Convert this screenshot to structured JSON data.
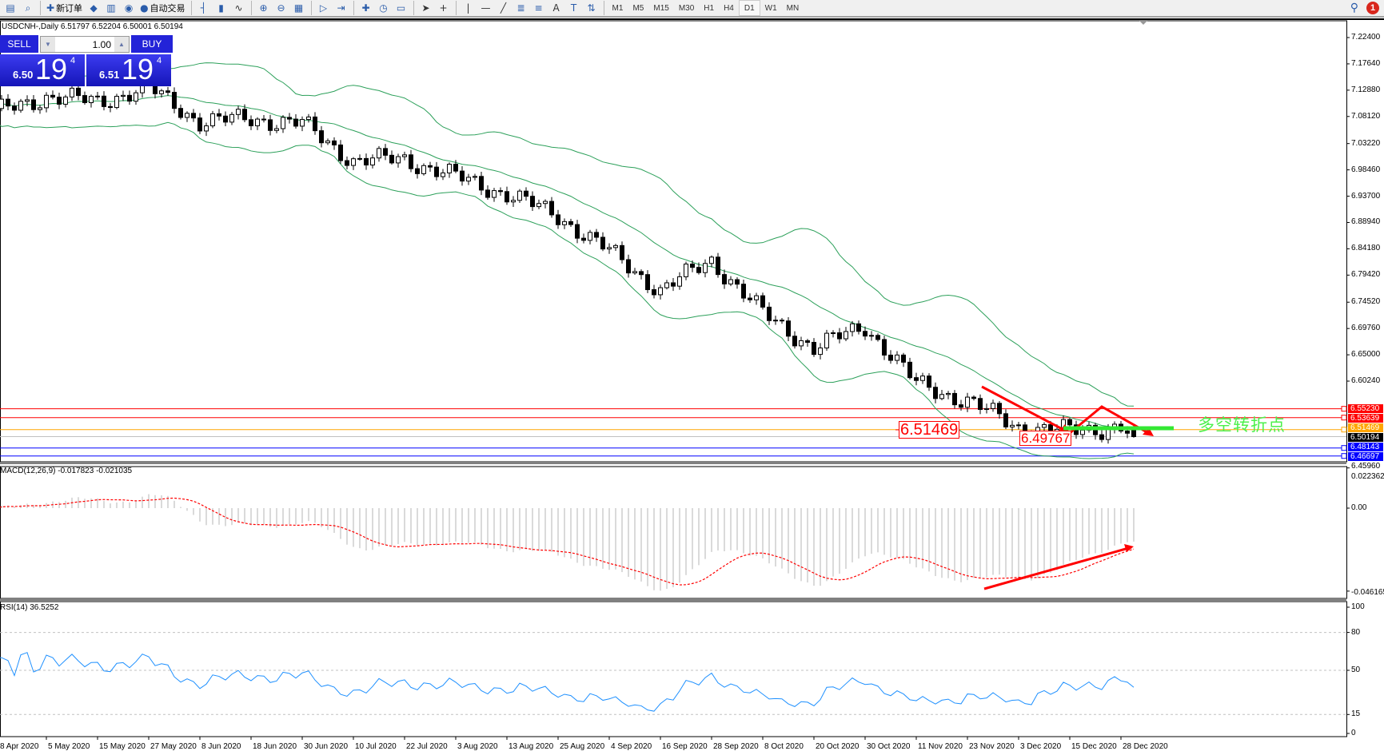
{
  "toolbar": {
    "icons": [
      "new-chart-icon",
      "zoom-window-icon",
      "new-order-icon",
      "history-icon",
      "navigator-icon",
      "signal-icon",
      "autotrading-icon",
      "bar-chart-icon",
      "candlestick-icon",
      "line-chart-icon",
      "zoom-in-icon",
      "zoom-out-icon",
      "tile-icon",
      "autoscroll-icon",
      "chart-shift-icon",
      "indicators-icon",
      "periods-icon",
      "templates-icon",
      "cursor-icon",
      "crosshair-icon",
      "vertical-line-icon",
      "horizontal-line-icon",
      "trendline-icon",
      "equidistant-channel-icon",
      "fibonacci-icon",
      "text-icon",
      "text-label-icon",
      "arrows-icon"
    ],
    "new_order": "新订单",
    "autotrading": "自动交易",
    "timeframes": [
      "M1",
      "M5",
      "M15",
      "M30",
      "H1",
      "H4",
      "D1",
      "W1",
      "MN"
    ],
    "active_timeframe": "D1",
    "notification_count": "1"
  },
  "chart": {
    "title": "USDCNH-,Daily  6.51797 6.52204 6.50001 6.50194",
    "one_click": {
      "sell": "SELL",
      "buy": "BUY",
      "lot": "1.00",
      "bid_big": "6.50",
      "bid_pips": "19",
      "bid_frac": "4",
      "ask_big": "6.51",
      "ask_pips": "19",
      "ask_frac": "4"
    },
    "annotations": {
      "label1": "6.51469",
      "label2": "6.49767",
      "text": "多空转折点"
    },
    "colors": {
      "bands": "#2ca05a",
      "resistance": "#ff0000",
      "pivot": "#ffa500",
      "support": "#0000ff",
      "bid": "#c0c0c0",
      "arrow": "#ff0000",
      "pivot_bar": "#33e833",
      "signal": "#ff0000",
      "histogram": "#c0c0c0",
      "rsi": "#1e90ff"
    }
  },
  "chart_data": [
    {
      "type": "candlestick",
      "symbol": "USDCNH-",
      "timeframe": "Daily",
      "indicator": "Bollinger Bands",
      "last_bar": {
        "open": 6.51797,
        "high": 6.52204,
        "low": 6.50001,
        "close": 6.50194
      },
      "price_axis": [
        "7.22400",
        "7.17640",
        "7.12880",
        "7.08120",
        "7.03220",
        "6.98460",
        "6.93700",
        "6.88940",
        "6.84180",
        "6.79420",
        "6.74520",
        "6.69760",
        "6.65000",
        "6.60240"
      ],
      "ylim": [
        6.4596,
        7.25
      ],
      "horizontal_lines": [
        {
          "value": "6.55230",
          "color": "#ff0000"
        },
        {
          "value": "6.53639",
          "color": "#ff0000"
        },
        {
          "value": "6.51469",
          "color": "#ffa500"
        },
        {
          "value": "6.50194",
          "color": "#000000"
        },
        {
          "value": "6.48143",
          "color": "#0000ff"
        },
        {
          "value": "6.46697",
          "color": "#0000ff"
        }
      ],
      "bottom_label": "6.45960",
      "close_anchors": [
        {
          "date": "8 Apr 2020",
          "close": 7.088
        },
        {
          "date": "5 May 2020",
          "close": 7.117
        },
        {
          "date": "15 May 2020",
          "close": 7.108
        },
        {
          "date": "27 May 2020",
          "close": 7.133
        },
        {
          "date": "8 Jun 2020",
          "close": 7.072
        },
        {
          "date": "18 Jun 2020",
          "close": 7.077
        },
        {
          "date": "30 Jun 2020",
          "close": 7.068
        },
        {
          "date": "10 Jul 2020",
          "close": 7.001
        },
        {
          "date": "22 Jul 2020",
          "close": 7.004
        },
        {
          "date": "3 Aug 2020",
          "close": 6.972
        },
        {
          "date": "13 Aug 2020",
          "close": 6.941
        },
        {
          "date": "25 Aug 2020",
          "close": 6.901
        },
        {
          "date": "4 Sep 2020",
          "close": 6.837
        },
        {
          "date": "16 Sep 2020",
          "close": 6.766
        },
        {
          "date": "28 Sep 2020",
          "close": 6.821
        },
        {
          "date": "8 Oct 2020",
          "close": 6.725
        },
        {
          "date": "20 Oct 2020",
          "close": 6.662
        },
        {
          "date": "30 Oct 2020",
          "close": 6.702
        },
        {
          "date": "11 Nov 2020",
          "close": 6.598
        },
        {
          "date": "23 Nov 2020",
          "close": 6.566
        },
        {
          "date": "3 Dec 2020",
          "close": 6.519
        },
        {
          "date": "15 Dec 2020",
          "close": 6.512
        },
        {
          "date": "28 Dec 2020",
          "close": 6.52
        }
      ],
      "dates": [
        "8 Apr 2020",
        "5 May 2020",
        "15 May 2020",
        "27 May 2020",
        "8 Jun 2020",
        "18 Jun 2020",
        "30 Jun 2020",
        "10 Jul 2020",
        "22 Jul 2020",
        "3 Aug 2020",
        "13 Aug 2020",
        "25 Aug 2020",
        "4 Sep 2020",
        "16 Sep 2020",
        "28 Sep 2020",
        "8 Oct 2020",
        "20 Oct 2020",
        "30 Oct 2020",
        "11 Nov 2020",
        "23 Nov 2020",
        "3 Dec 2020",
        "15 Dec 2020",
        "28 Dec 2020"
      ]
    },
    {
      "type": "bar+line",
      "indicator": "MACD",
      "title": "MACD(12,26,9) -0.017823 -0.021035",
      "main": -0.017823,
      "signal": -0.021035,
      "axis": [
        "0.022362",
        "0.00",
        "-0.046165"
      ],
      "ylim": [
        -0.046165,
        0.022362
      ]
    },
    {
      "type": "line",
      "indicator": "RSI",
      "title": "RSI(14) 36.5252",
      "value": 36.5252,
      "axis": [
        "100",
        "80",
        "50",
        "15",
        "0"
      ],
      "levels": [
        80,
        50,
        15
      ],
      "ylim": [
        0,
        100
      ]
    }
  ]
}
